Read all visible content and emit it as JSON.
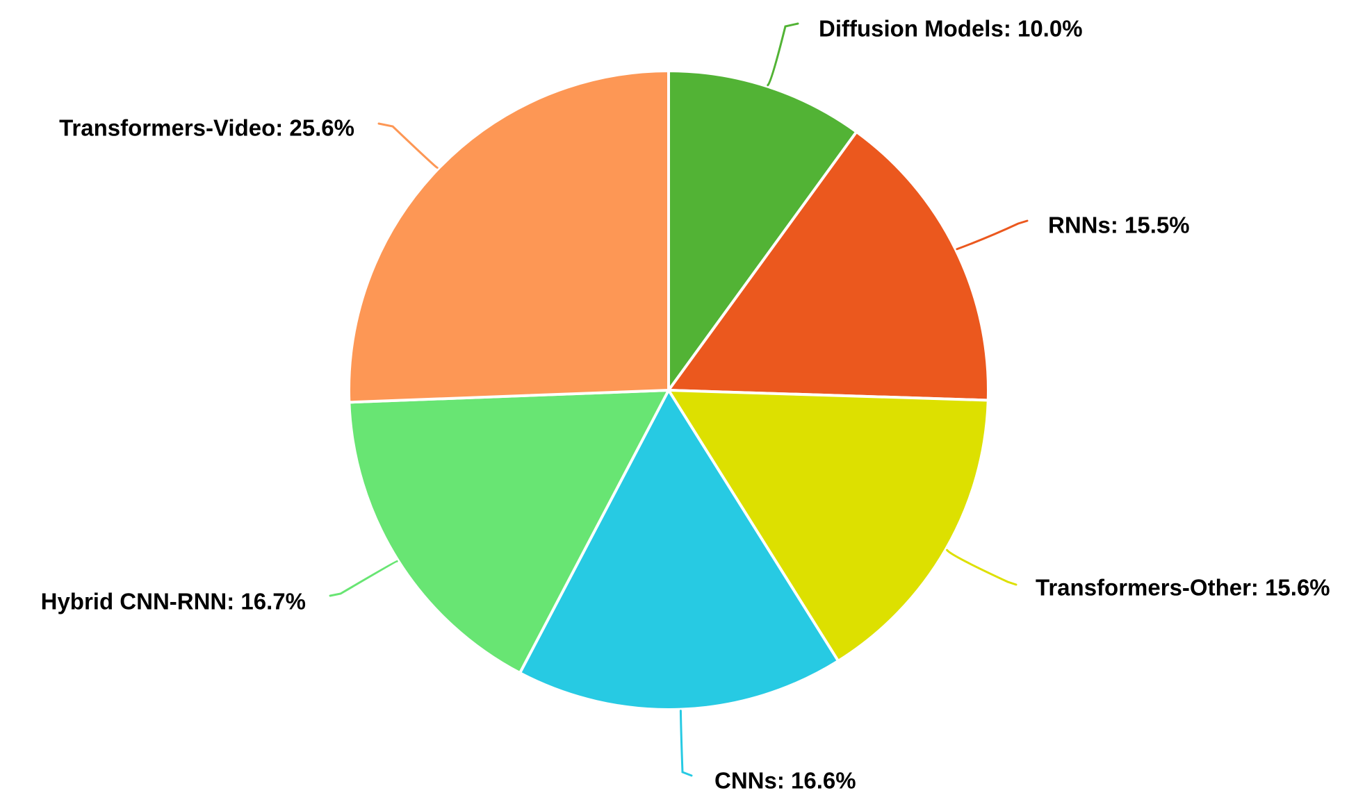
{
  "chart_data": {
    "type": "pie",
    "title": "",
    "start": "12 o'clock",
    "direction": "clockwise",
    "legend": "none",
    "label_style": "outside, with leader lines",
    "slices": [
      {
        "label": "Diffusion Models",
        "value": 10.0,
        "display": "Diffusion Models: 10.0%",
        "color": "#52b335"
      },
      {
        "label": "RNNs",
        "value": 15.5,
        "display": "RNNs: 15.5%",
        "color": "#eb581e"
      },
      {
        "label": "Transformers-Other",
        "value": 15.6,
        "display": "Transformers-Other: 15.6%",
        "color": "#dde000"
      },
      {
        "label": "CNNs",
        "value": 16.6,
        "display": "CNNs: 16.6%",
        "color": "#27cae3"
      },
      {
        "label": "Hybrid CNN-RNN",
        "value": 16.7,
        "display": "Hybrid CNN-RNN: 16.7%",
        "color": "#68e573"
      },
      {
        "label": "Transformers-Video",
        "value": 25.6,
        "display": "Transformers-Video: 25.6%",
        "color": "#fd9755"
      }
    ]
  }
}
